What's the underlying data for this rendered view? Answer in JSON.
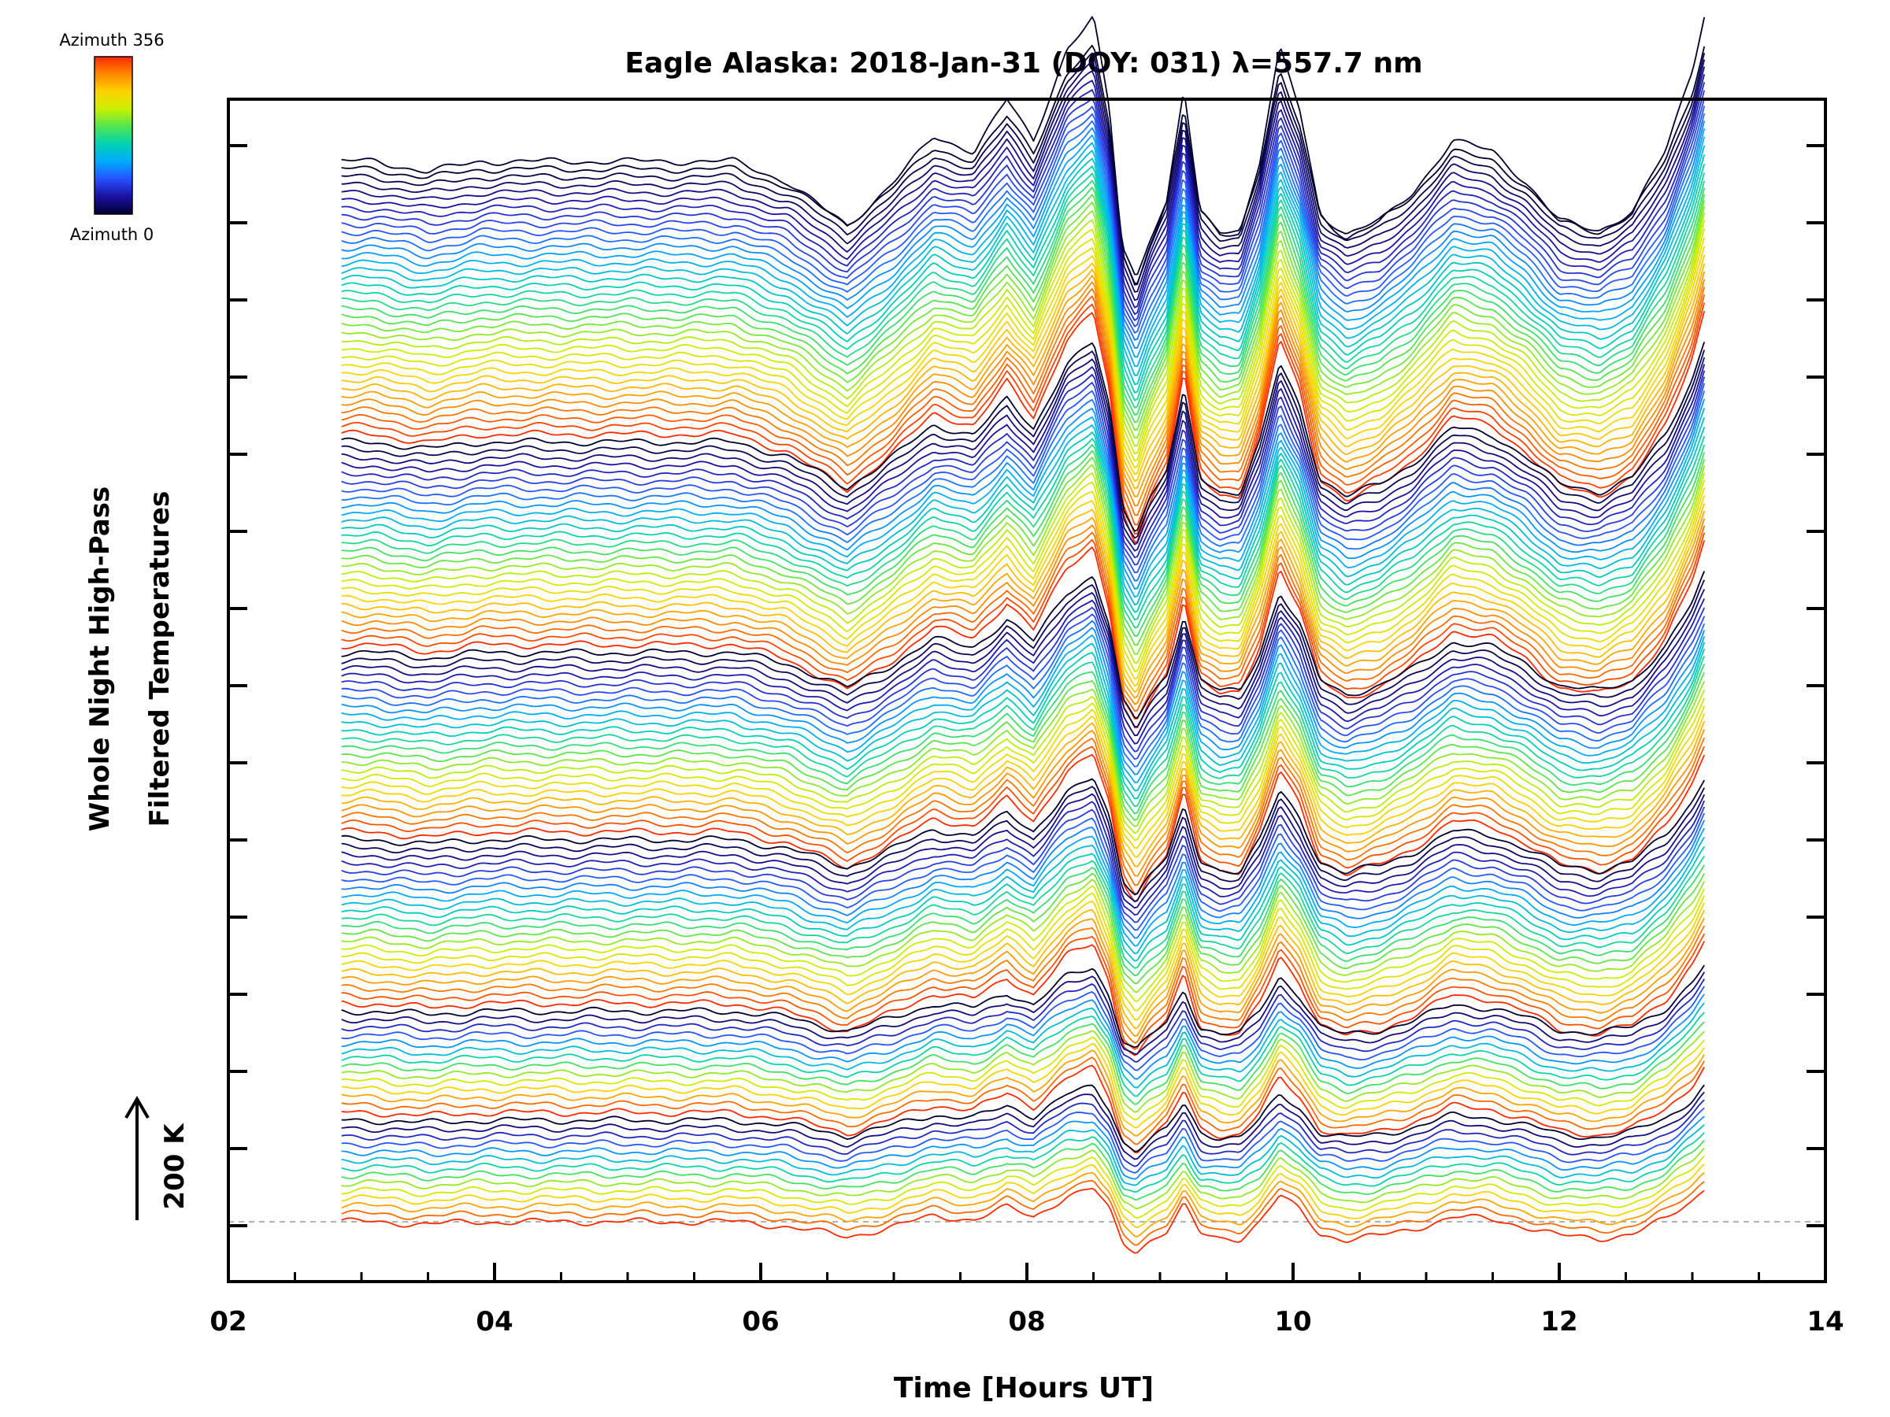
{
  "chart_data": {
    "type": "line",
    "title": "Eagle Alaska: 2018-Jan-31 (DOY: 031) λ=557.7 nm",
    "xlabel": "Time [Hours UT]",
    "ylabel_lines": [
      "Whole Night High-Pass",
      "Filtered Temperatures"
    ],
    "xlim": [
      2,
      14
    ],
    "x_ticks": [
      "02",
      "04",
      "06",
      "08",
      "10",
      "12",
      "14"
    ],
    "scale_bar_label": "200 K",
    "colorbar": {
      "top_label": "Azimuth 356",
      "bottom_label": "Azimuth 0",
      "colors": [
        "#ff2a00",
        "#ff8800",
        "#ffd200",
        "#c8f000",
        "#50e650",
        "#00d2b4",
        "#00aaff",
        "#2850ff",
        "#1a10a0",
        "#000030"
      ]
    },
    "trace_time_range": [
      2.85,
      13.1
    ],
    "trace_count": 137,
    "azimuth_range": [
      0,
      356
    ],
    "base_profile": {
      "x": [
        2.85,
        3.1,
        3.5,
        3.9,
        4.5,
        5.0,
        5.3,
        5.8,
        6.2,
        6.65,
        7.0,
        7.3,
        7.6,
        7.85,
        8.05,
        8.3,
        8.5,
        8.62,
        8.72,
        8.82,
        8.92,
        9.05,
        9.18,
        9.3,
        9.45,
        9.6,
        9.75,
        9.9,
        10.05,
        10.2,
        10.4,
        10.65,
        10.9,
        11.2,
        11.5,
        11.75,
        12.0,
        12.3,
        12.55,
        12.8,
        13.0,
        13.1
      ],
      "y": [
        0,
        0,
        -5,
        0,
        0,
        0,
        0,
        0,
        -10,
        -32,
        -10,
        12,
        5,
        30,
        10,
        55,
        70,
        25,
        -45,
        -62,
        -40,
        -20,
        35,
        -25,
        -35,
        -35,
        0,
        55,
        25,
        -25,
        -38,
        -30,
        -15,
        10,
        5,
        -10,
        -30,
        -35,
        -25,
        5,
        45,
        75
      ]
    },
    "stack_groups": [
      {
        "top_trace": 0,
        "profile_gain": 2.6
      },
      {
        "top_trace": 35,
        "profile_gain": 2.2
      },
      {
        "top_trace": 62,
        "profile_gain": 1.8
      },
      {
        "top_trace": 86,
        "profile_gain": 1.4
      },
      {
        "top_trace": 108,
        "profile_gain": 1.1
      },
      {
        "top_trace": 122,
        "profile_gain": 0.8
      },
      {
        "top_trace": 136,
        "profile_gain": 0.6
      }
    ]
  }
}
